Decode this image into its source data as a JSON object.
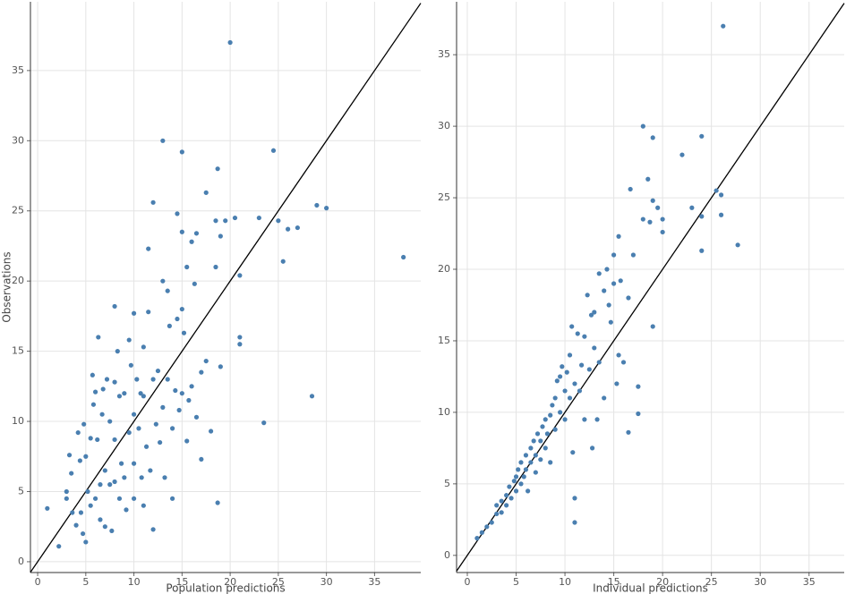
{
  "chart_data": [
    {
      "type": "scatter",
      "x_label": "Population predictions",
      "y_label": "Observations",
      "color": "#4a7fb0",
      "xlim": [
        -0.75,
        39.8
      ],
      "ylim": [
        -0.77,
        39.9
      ],
      "xticks": [
        0,
        5,
        10,
        15,
        20,
        25,
        30,
        35
      ],
      "yticks": [
        0,
        5,
        10,
        15,
        20,
        25,
        30,
        35
      ],
      "grid": true,
      "x": [
        1,
        2.2,
        3,
        3,
        3.3,
        3.5,
        3.6,
        4,
        4.2,
        4.4,
        4.5,
        4.7,
        4.8,
        5,
        5,
        5.2,
        5.5,
        5.5,
        5.7,
        5.8,
        6,
        6,
        6.2,
        6.3,
        6.5,
        6.5,
        6.7,
        6.8,
        7,
        7,
        7.2,
        7.5,
        7.5,
        7.7,
        8,
        8,
        8,
        8,
        8.3,
        8.5,
        8.5,
        8.7,
        9,
        9,
        9.2,
        9.5,
        9.5,
        9.7,
        10,
        10,
        10,
        10,
        10.3,
        10.5,
        10.7,
        10.8,
        11,
        11,
        11,
        11.3,
        11.5,
        11.5,
        11.7,
        12,
        12,
        12,
        12.3,
        12.5,
        12.7,
        13,
        13,
        13,
        13.2,
        13.5,
        13.5,
        13.7,
        14,
        14,
        14.3,
        14.5,
        14.5,
        14.7,
        15,
        15,
        15,
        15,
        15.2,
        15.5,
        15.5,
        15.7,
        16,
        16,
        16.3,
        16.5,
        16.5,
        17,
        17,
        17.5,
        17.5,
        18,
        18.5,
        18.5,
        18.7,
        18.7,
        19,
        19,
        19.5,
        20,
        20.5,
        21,
        21,
        21,
        23,
        23.5,
        24.5,
        25,
        25.5,
        26,
        27,
        28.5,
        29,
        30,
        38
      ],
      "values": [
        3.8,
        1.1,
        5,
        4.5,
        7.6,
        6.3,
        3.5,
        2.6,
        9.2,
        7.2,
        3.5,
        2,
        9.8,
        1.4,
        7.5,
        5,
        8.8,
        4,
        13.3,
        11.2,
        12.1,
        4.5,
        8.7,
        16,
        5.5,
        3,
        10.5,
        12.3,
        6.5,
        2.5,
        13,
        10,
        5.5,
        2.2,
        18.2,
        12.8,
        8.7,
        5.7,
        15,
        11.8,
        4.5,
        7,
        12,
        6,
        3.7,
        15.8,
        9.2,
        14,
        17.7,
        10.5,
        7,
        4.5,
        13,
        9.5,
        12,
        6,
        15.3,
        11.8,
        4,
        8.2,
        22.3,
        17.8,
        6.5,
        25.6,
        13,
        2.3,
        9.8,
        13.6,
        8.5,
        30,
        20,
        11,
        6,
        19.3,
        13,
        16.8,
        9.5,
        4.5,
        12.2,
        24.8,
        17.3,
        10.8,
        29.2,
        23.5,
        18,
        12,
        16.3,
        21,
        8.6,
        11.5,
        22.8,
        12.5,
        19.8,
        23.4,
        10.3,
        13.5,
        7.3,
        26.3,
        14.3,
        9.3,
        24.3,
        21,
        28,
        4.2,
        23.2,
        13.9,
        24.3,
        37,
        24.5,
        20.4,
        16,
        15.5,
        24.5,
        9.9,
        29.3,
        24.3,
        21.4,
        23.7,
        23.8,
        11.8,
        25.4,
        25.2,
        21.7
      ]
    },
    {
      "type": "scatter",
      "x_label": "Individual predictions",
      "color": "#4a7fb0",
      "xlim": [
        -1.1,
        38.6
      ],
      "ylim": [
        -1.2,
        38.7
      ],
      "xticks": [
        0,
        5,
        10,
        15,
        20,
        25,
        30,
        35
      ],
      "yticks": [
        0,
        5,
        10,
        15,
        20,
        25,
        30,
        35
      ],
      "grid": true,
      "x": [
        1,
        1.5,
        2,
        2.5,
        3,
        3,
        3.5,
        3.5,
        4,
        4,
        4.3,
        4.5,
        4.8,
        5,
        5,
        5.2,
        5.5,
        5.5,
        5.8,
        6,
        6,
        6.2,
        6.5,
        6.5,
        6.8,
        7,
        7,
        7.2,
        7.5,
        7.5,
        7.7,
        8,
        8,
        8.2,
        8.5,
        8.5,
        8.7,
        9,
        9,
        9.2,
        9.5,
        9.5,
        9.7,
        10,
        10,
        10.2,
        10.5,
        10.5,
        10.7,
        10.8,
        11,
        11,
        11,
        11.3,
        11.5,
        11.7,
        12,
        12,
        12.3,
        12.5,
        12.7,
        12.8,
        13,
        13,
        13.3,
        13.5,
        13.5,
        14,
        14,
        14.3,
        14.5,
        14.7,
        15,
        15,
        15.3,
        15.5,
        15.5,
        15.7,
        16,
        16.5,
        16.5,
        16.7,
        17,
        17.5,
        17.5,
        18,
        18,
        18.5,
        18.7,
        19,
        19,
        19,
        19.5,
        20,
        20,
        22,
        23,
        24,
        24,
        24,
        25.5,
        26,
        26,
        26.2,
        27.7
      ],
      "values": [
        1.2,
        1.6,
        2,
        2.3,
        2.9,
        3.5,
        3.8,
        3,
        4.2,
        3.5,
        4.8,
        4,
        5.2,
        4.5,
        5.5,
        6,
        5,
        6.5,
        5.5,
        7,
        6,
        4.5,
        7.5,
        6.5,
        8,
        7,
        5.8,
        8.5,
        8,
        6.7,
        9,
        9.5,
        7.5,
        8.5,
        9.8,
        6.5,
        10.5,
        11,
        8.8,
        12.2,
        12.5,
        10,
        13.2,
        11.5,
        9.5,
        12.8,
        14,
        11,
        16,
        7.2,
        12,
        4,
        2.3,
        15.5,
        11.5,
        13.3,
        15.3,
        9.5,
        18.2,
        13,
        16.8,
        7.5,
        17,
        14.5,
        9.5,
        19.7,
        13.5,
        18.5,
        11,
        20,
        17.5,
        16.3,
        19,
        21,
        12,
        22.3,
        14,
        19.2,
        13.5,
        18,
        8.6,
        25.6,
        21,
        9.9,
        11.8,
        23.5,
        30,
        26.3,
        23.3,
        29.2,
        24.8,
        16,
        24.3,
        23.5,
        22.6,
        28,
        24.3,
        29.3,
        21.3,
        23.7,
        25.5,
        25.2,
        23.8,
        37,
        21.7
      ]
    }
  ]
}
